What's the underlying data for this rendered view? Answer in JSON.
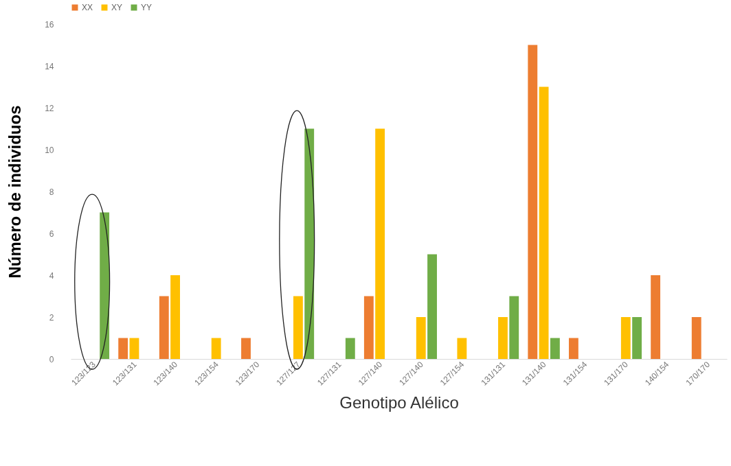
{
  "chart_data": {
    "type": "bar",
    "xlabel": "Genotipo Alélico",
    "ylabel": "Número de individuos",
    "categories": [
      "123/123",
      "123/131",
      "123/140",
      "123/154",
      "123/170",
      "127/127",
      "127/131",
      "127/140",
      "127/140",
      "127/154",
      "131/131",
      "131/140",
      "131/154",
      "131/170",
      "140/154",
      "170/170"
    ],
    "series": [
      {
        "name": "XX",
        "color": "#ed7d31",
        "values": [
          0,
          1,
          3,
          0,
          1,
          0,
          0,
          3,
          0,
          0,
          0,
          15,
          1,
          0,
          4,
          2
        ]
      },
      {
        "name": "XY",
        "color": "#ffc000",
        "values": [
          0,
          1,
          4,
          1,
          0,
          3,
          0,
          11,
          2,
          1,
          2,
          13,
          0,
          2,
          0,
          0
        ]
      },
      {
        "name": "YY",
        "color": "#70ad47",
        "values": [
          7,
          0,
          0,
          0,
          0,
          11,
          1,
          0,
          5,
          0,
          3,
          1,
          0,
          2,
          0,
          0
        ]
      }
    ],
    "ylim": [
      0,
      16
    ],
    "yticks": [
      0,
      2,
      4,
      6,
      8,
      10,
      12,
      14,
      16
    ],
    "grid": false,
    "legend": "top"
  }
}
